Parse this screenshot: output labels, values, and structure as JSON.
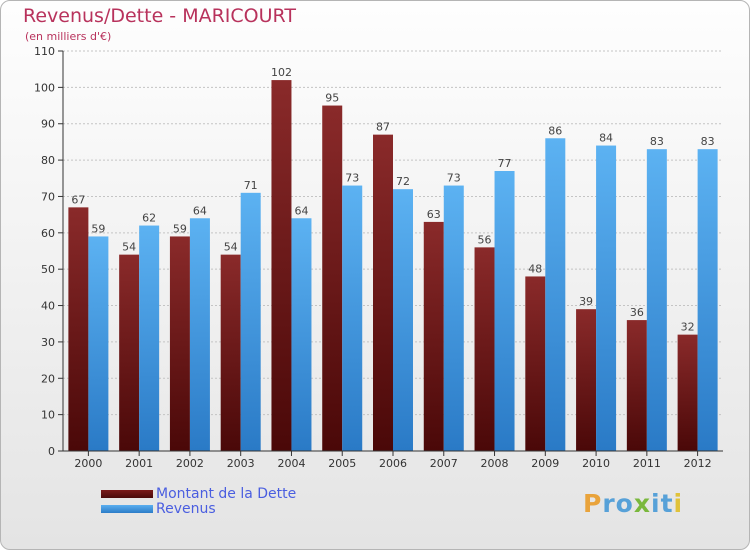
{
  "title": "Revenus/Dette - MARICOURT",
  "subtitle": "(en milliers d'€)",
  "logo": {
    "text": "Proxiti",
    "letters": [
      "P",
      "r",
      "o",
      "x",
      "i",
      "t",
      "i"
    ],
    "colors": [
      "#e9a33b",
      "#57a1d8",
      "#57a1d8",
      "#7ab83d",
      "#57a1d8",
      "#57a1d8",
      "#e0c23a"
    ]
  },
  "legend": {
    "dette_label": "Montant de la Dette",
    "revenus_label": "Revenus",
    "dette_color": "#6d1111",
    "revenus_color": "#4a9fe8"
  },
  "chart_data": {
    "type": "bar",
    "title": "Revenus/Dette - MARICOURT",
    "subtitle": "(en milliers d'€)",
    "categories": [
      "2000",
      "2001",
      "2002",
      "2003",
      "2004",
      "2005",
      "2006",
      "2007",
      "2008",
      "2009",
      "2010",
      "2011",
      "2012"
    ],
    "series": [
      {
        "name": "Montant de la Dette",
        "color": "#7a1d1d",
        "values": [
          67,
          54,
          59,
          54,
          102,
          95,
          87,
          63,
          56,
          48,
          39,
          36,
          32
        ]
      },
      {
        "name": "Revenus",
        "color": "#4aa3e8",
        "values": [
          59,
          62,
          64,
          71,
          64,
          73,
          72,
          73,
          77,
          86,
          84,
          83,
          83
        ]
      }
    ],
    "ylim": [
      0,
      110
    ],
    "yticks": [
      0,
      10,
      20,
      30,
      40,
      50,
      60,
      70,
      80,
      90,
      100,
      110
    ],
    "grid": true,
    "legend_position": "bottom-left"
  }
}
